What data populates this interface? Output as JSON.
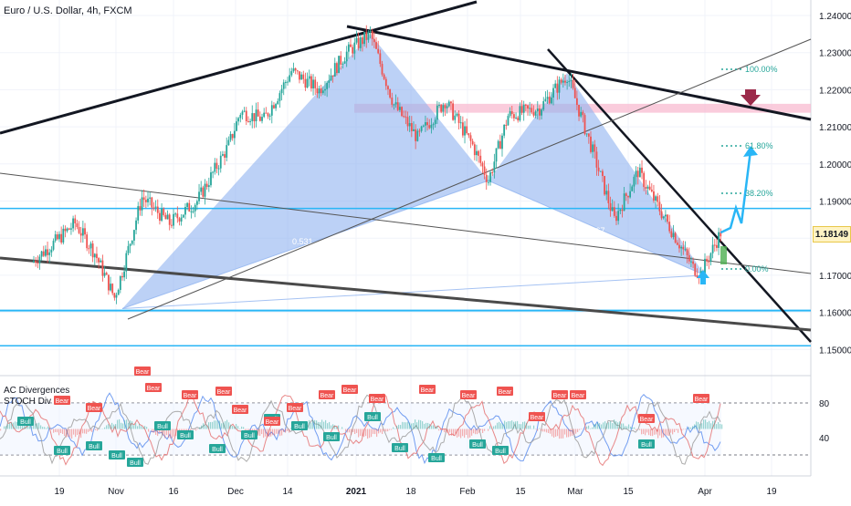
{
  "header": {
    "title": "Euro / U.S. Dollar, 4h, FXCM",
    "osc_label_1": "AC Divergences",
    "osc_label_2": "STOCH Div"
  },
  "price_tag": "1.18149",
  "colors": {
    "pattern_fill": "#8fb3f0",
    "cyan_line": "#29b6f6",
    "resistance_zone": "#f8bbd0",
    "arrow_down": "#9c2a4a",
    "bull_label": "#26a69a",
    "bear_label": "#ef5350"
  },
  "chart_data": {
    "type": "line",
    "title": "Euro / U.S. Dollar, 4h, FXCM",
    "y_ticks": [
      "1.24000",
      "1.23000",
      "1.22000",
      "1.21000",
      "1.20000",
      "1.19000",
      "1.18000",
      "1.17000",
      "1.16000",
      "1.15000"
    ],
    "ylim": [
      1.1465,
      1.2435
    ],
    "x_ticks": [
      "19",
      "Nov",
      "16",
      "Dec",
      "14",
      "2021",
      "18",
      "Feb",
      "15",
      "Mar",
      "15",
      "Apr",
      "19"
    ],
    "osc_y_ticks": [
      "80",
      "40"
    ],
    "price_path": {
      "x": [
        "Oct 12",
        "Oct 19",
        "Oct 23",
        "Oct 28",
        "Nov 2",
        "Nov 4",
        "Nov 9",
        "Nov 16",
        "Nov 23",
        "Dec 1",
        "Dec 4",
        "Dec 10",
        "Dec 17",
        "Dec 24",
        "Dec 31",
        "Jan 6",
        "Jan 12",
        "Jan 18",
        "Jan 25",
        "Feb 1",
        "Feb 5",
        "Feb 10",
        "Feb 18",
        "Feb 25",
        "Mar 3",
        "Mar 9",
        "Mar 15",
        "Mar 22",
        "Mar 29",
        "Mar 31",
        "Apr 5"
      ],
      "y": [
        1.1735,
        1.18,
        1.184,
        1.176,
        1.164,
        1.171,
        1.191,
        1.184,
        1.19,
        1.205,
        1.214,
        1.212,
        1.225,
        1.22,
        1.23,
        1.235,
        1.216,
        1.207,
        1.217,
        1.205,
        1.1955,
        1.213,
        1.215,
        1.224,
        1.205,
        1.185,
        1.198,
        1.185,
        1.172,
        1.1705,
        1.1815
      ]
    },
    "harmonic_pattern": {
      "points": [
        "Nov 4 1.1610",
        "Jan 6 1.2350",
        "Feb 5 1.1955",
        "Feb 25 1.2245",
        "Apr 1 1.1700"
      ],
      "labels": [
        "0.531",
        "0.597",
        "0.667"
      ]
    },
    "fib_targets": [
      "100.00%",
      "61.80%",
      "38.20%",
      "0.00%"
    ],
    "horizontal_levels": [
      1.188,
      1.1605,
      1.151
    ],
    "resistance_zone": [
      1.2138,
      1.2162
    ],
    "grid": true,
    "legend": "none",
    "osc_bull_labels": [
      "Bull",
      "Bull",
      "Bull",
      "Bull",
      "Bull",
      "Bull",
      "Bull",
      "Bull",
      "Bull",
      "Bull",
      "Bull",
      "Bull",
      "Bull",
      "Bull",
      "Bull",
      "Bull",
      "Bull",
      "Bull"
    ],
    "osc_bear_labels": [
      "Bear",
      "Bear",
      "Bear",
      "Bear",
      "Bear",
      "Bear",
      "Bear",
      "Bear",
      "Bear",
      "Bear",
      "Bear",
      "Bear",
      "Bear",
      "Bear",
      "Bear",
      "Bear",
      "Bear",
      "Bear",
      "Bear",
      "Bear"
    ]
  }
}
